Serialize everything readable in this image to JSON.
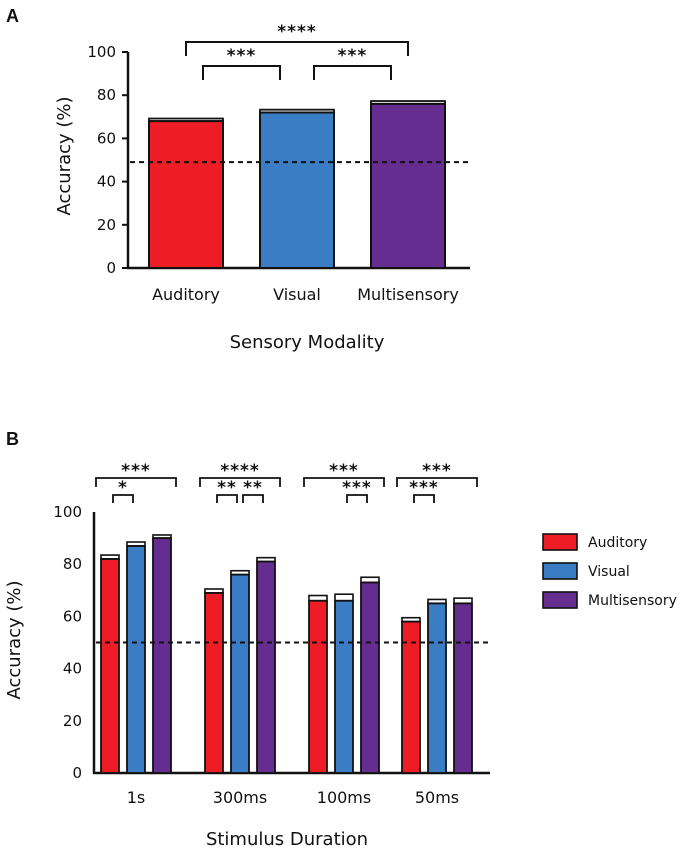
{
  "chart_data": [
    {
      "panel": "A",
      "type": "bar",
      "categories": [
        "Auditory",
        "Visual",
        "Multisensory"
      ],
      "values": [
        68,
        72,
        76
      ],
      "errors": [
        1.2,
        1.3,
        1.3
      ],
      "colors": [
        "#ee1c24",
        "#3b7dc4",
        "#662d91"
      ],
      "xlabel": "Sensory Modality",
      "ylabel": "Accuracy (%)",
      "ylim": [
        0,
        100
      ],
      "yticks": [
        0,
        20,
        40,
        60,
        80,
        100
      ],
      "chance": 49,
      "significance": [
        {
          "from": 0,
          "to": 2,
          "label": "****"
        },
        {
          "from": 0,
          "to": 1,
          "label": "***"
        },
        {
          "from": 1,
          "to": 2,
          "label": "***"
        }
      ]
    },
    {
      "panel": "B",
      "type": "bar",
      "categories": [
        "1s",
        "300ms",
        "100ms",
        "50ms"
      ],
      "series": [
        {
          "name": "Auditory",
          "color": "#ee1c24",
          "values": [
            82,
            69,
            66,
            58
          ],
          "errors": [
            1.5,
            1.5,
            2,
            1.5
          ]
        },
        {
          "name": "Visual",
          "color": "#3b7dc4",
          "values": [
            87,
            76,
            66,
            65
          ],
          "errors": [
            1.5,
            1.5,
            2.5,
            1.5
          ]
        },
        {
          "name": "Multisensory",
          "color": "#662d91",
          "values": [
            90,
            81,
            73,
            65
          ],
          "errors": [
            1.2,
            1.5,
            2,
            2
          ]
        }
      ],
      "xlabel": "Stimulus Duration",
      "ylabel": "Accuracy (%)",
      "ylim": [
        0,
        100
      ],
      "yticks": [
        0,
        20,
        40,
        60,
        80,
        100
      ],
      "chance": 50,
      "significance": [
        {
          "group": 0,
          "from": 0,
          "to": 2,
          "label": "***"
        },
        {
          "group": 0,
          "from": 0,
          "to": 1,
          "label": "*"
        },
        {
          "group": 1,
          "from": 0,
          "to": 2,
          "label": "****"
        },
        {
          "group": 1,
          "from": 0,
          "to": 1,
          "label": "**"
        },
        {
          "group": 1,
          "from": 1,
          "to": 2,
          "label": "**"
        },
        {
          "group": 2,
          "from": 0,
          "to": 2,
          "label": "***"
        },
        {
          "group": 2,
          "from": 1,
          "to": 2,
          "label": "***"
        },
        {
          "group": 3,
          "from": 0,
          "to": 2,
          "label": "***"
        },
        {
          "group": 3,
          "from": 0,
          "to": 1,
          "label": "***"
        }
      ]
    }
  ]
}
